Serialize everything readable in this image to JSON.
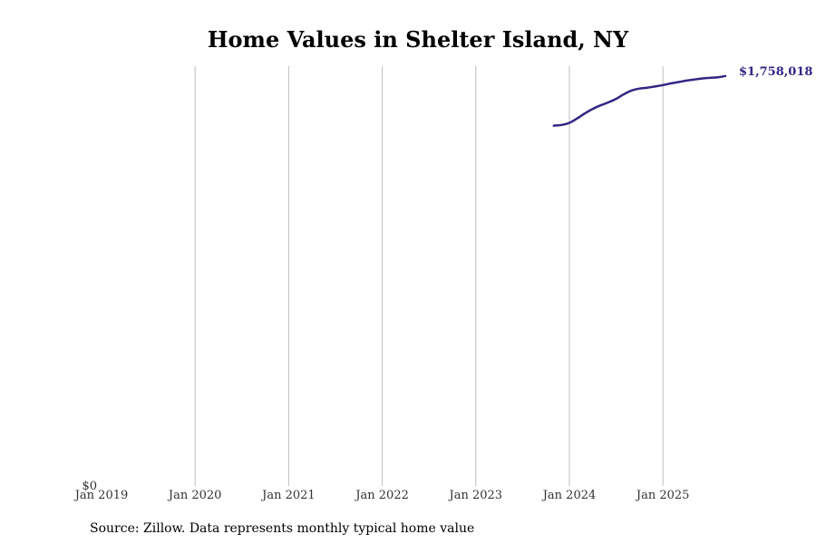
{
  "chart_data": {
    "type": "line",
    "title": "Home Values in Shelter Island, NY",
    "xlabel": "",
    "ylabel": "",
    "x_ticks": [
      "Jan 2019",
      "Jan 2020",
      "Jan 2021",
      "Jan 2022",
      "Jan 2023",
      "Jan 2024",
      "Jan 2025"
    ],
    "y_ticks": [
      "$0"
    ],
    "xlim": [
      "2019-01",
      "2025-09"
    ],
    "ylim": [
      0,
      1800000
    ],
    "grid": "vertical",
    "line_color": "#312783",
    "series": [
      {
        "name": "Typical home value",
        "x": [
          "2023-11",
          "2023-12",
          "2024-01",
          "2024-02",
          "2024-03",
          "2024-04",
          "2024-05",
          "2024-06",
          "2024-07",
          "2024-08",
          "2024-09",
          "2024-10",
          "2024-11",
          "2024-12",
          "2025-01",
          "2025-02",
          "2025-03",
          "2025-04",
          "2025-05",
          "2025-06",
          "2025-07",
          "2025-08",
          "2025-09"
        ],
        "values": [
          1545000,
          1548000,
          1557000,
          1576000,
          1598000,
          1617000,
          1632000,
          1645000,
          1660000,
          1680000,
          1696000,
          1704000,
          1708000,
          1713000,
          1719000,
          1726000,
          1732000,
          1738000,
          1743000,
          1747000,
          1750000,
          1752000,
          1758018
        ]
      }
    ],
    "end_label": "$1,758,018",
    "source": "Source: Zillow. Data represents monthly typical home value"
  }
}
